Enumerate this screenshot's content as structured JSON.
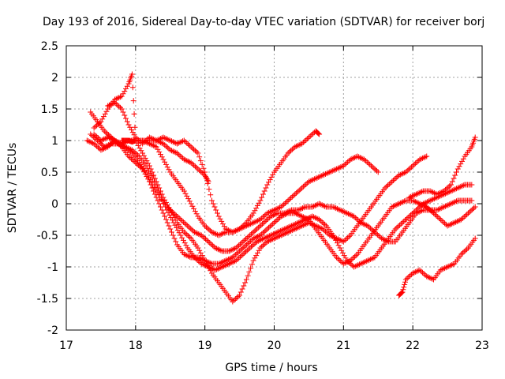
{
  "chart_data": {
    "type": "scatter",
    "title": "Day 193 of 2016, Sidereal Day-to-day VTEC variation (SDTVAR) for receiver borj",
    "xlabel": "GPS time / hours",
    "ylabel": "SDTVAR / TECUs",
    "xlim": [
      17,
      23
    ],
    "ylim": [
      -2,
      2.5
    ],
    "xticks": [
      "17",
      "18",
      "19",
      "20",
      "21",
      "22",
      "23"
    ],
    "yticks": [
      "-2",
      "-1.5",
      "-1",
      "-0.5",
      "0",
      "0.5",
      "1",
      "1.5",
      "2",
      "2.5"
    ],
    "grid": true,
    "marker": "+",
    "color": "#ff0000",
    "series": [
      {
        "x": [
          17.8,
          17.85,
          17.9,
          17.95,
          18.0,
          18.1,
          18.2,
          18.3,
          18.4,
          18.5,
          18.6,
          18.7,
          18.8,
          18.9,
          19.0,
          19.1,
          19.2,
          19.3,
          19.4,
          19.5,
          19.6,
          19.7,
          19.8,
          19.9,
          20.0,
          20.1,
          20.2,
          20.3,
          20.4,
          20.5,
          20.6,
          20.65
        ],
        "y": [
          1.0,
          1.0,
          1.0,
          0.98,
          1.0,
          1.0,
          1.0,
          1.0,
          1.05,
          1.0,
          0.95,
          1.0,
          0.9,
          0.8,
          0.5,
          0.05,
          -0.2,
          -0.4,
          -0.45,
          -0.4,
          -0.3,
          -0.15,
          0.05,
          0.3,
          0.5,
          0.65,
          0.8,
          0.9,
          0.95,
          1.05,
          1.15,
          1.1
        ]
      },
      {
        "x": [
          17.4,
          17.5,
          17.6,
          17.7,
          17.8,
          17.9,
          18.0,
          18.1,
          18.2,
          18.3,
          18.4,
          18.5,
          18.6,
          18.7,
          18.8,
          18.9,
          19.0,
          19.1,
          19.2,
          19.3,
          19.4,
          19.5,
          19.6,
          19.7,
          19.8,
          19.9,
          20.0,
          20.1,
          20.2,
          20.3,
          20.4,
          20.5,
          20.6,
          20.7,
          20.8,
          20.9,
          21.0,
          21.1,
          21.2,
          21.3,
          21.4,
          21.5
        ],
        "y": [
          1.1,
          1.0,
          1.05,
          1.0,
          0.95,
          1.0,
          1.0,
          1.0,
          0.95,
          0.9,
          0.7,
          0.5,
          0.35,
          0.2,
          0.0,
          -0.2,
          -0.35,
          -0.45,
          -0.5,
          -0.45,
          -0.45,
          -0.4,
          -0.35,
          -0.3,
          -0.25,
          -0.15,
          -0.1,
          -0.05,
          0.05,
          0.15,
          0.25,
          0.35,
          0.4,
          0.45,
          0.5,
          0.55,
          0.6,
          0.7,
          0.75,
          0.7,
          0.6,
          0.5
        ]
      },
      {
        "x": [
          17.35,
          17.45,
          17.55,
          17.65,
          17.75,
          17.85,
          17.95,
          18.05,
          18.15,
          18.25,
          18.35,
          18.45,
          18.55,
          18.65,
          18.75,
          18.85,
          18.95,
          19.05,
          19.15,
          19.25,
          19.35,
          19.45,
          19.55,
          19.65,
          19.75,
          19.85,
          19.95,
          20.05,
          20.15,
          20.25,
          20.35,
          20.45,
          20.55,
          20.65,
          20.75,
          20.85,
          20.95,
          21.05,
          21.15,
          21.25,
          21.35,
          21.45,
          21.55,
          21.65,
          21.75,
          21.85,
          21.95,
          22.05,
          22.15,
          22.25,
          22.35,
          22.45,
          22.55,
          22.65,
          22.75,
          22.85
        ],
        "y": [
          1.45,
          1.3,
          1.15,
          1.05,
          0.95,
          0.9,
          0.8,
          0.65,
          0.5,
          0.3,
          0.1,
          -0.05,
          -0.15,
          -0.25,
          -0.35,
          -0.45,
          -0.5,
          -0.6,
          -0.7,
          -0.75,
          -0.75,
          -0.7,
          -0.6,
          -0.5,
          -0.4,
          -0.3,
          -0.2,
          -0.15,
          -0.15,
          -0.1,
          -0.1,
          -0.05,
          -0.05,
          0.0,
          -0.05,
          -0.05,
          -0.1,
          -0.15,
          -0.2,
          -0.3,
          -0.35,
          -0.45,
          -0.55,
          -0.6,
          -0.6,
          -0.45,
          -0.3,
          -0.15,
          -0.1,
          -0.1,
          -0.1,
          -0.05,
          0.0,
          0.05,
          0.05,
          0.05
        ]
      },
      {
        "x": [
          17.3,
          17.4,
          17.5,
          17.6,
          17.7,
          17.8,
          17.9,
          18.0,
          18.1,
          18.2,
          18.3,
          18.4,
          18.5,
          18.6,
          18.7,
          18.8,
          18.9,
          19.0,
          19.1,
          19.2,
          19.3,
          19.4,
          19.5,
          19.6,
          19.7,
          19.8,
          19.9,
          20.0,
          20.1,
          20.2,
          20.3,
          20.4,
          20.5,
          20.6,
          20.7,
          20.8,
          20.9,
          21.0,
          21.1,
          21.2,
          21.3,
          21.4,
          21.5,
          21.6,
          21.7,
          21.8,
          21.9,
          22.0,
          22.1,
          22.2,
          22.3,
          22.4,
          22.5,
          22.6,
          22.7,
          22.8,
          22.9
        ],
        "y": [
          1.0,
          0.95,
          0.85,
          0.9,
          1.0,
          0.9,
          0.75,
          0.65,
          0.55,
          0.35,
          0.1,
          -0.15,
          -0.4,
          -0.65,
          -0.8,
          -0.85,
          -0.85,
          -0.9,
          -0.95,
          -0.95,
          -0.9,
          -0.85,
          -0.75,
          -0.65,
          -0.55,
          -0.5,
          -0.4,
          -0.3,
          -0.2,
          -0.15,
          -0.15,
          -0.2,
          -0.25,
          -0.4,
          -0.55,
          -0.7,
          -0.85,
          -0.95,
          -0.9,
          -0.8,
          -0.65,
          -0.5,
          -0.35,
          -0.2,
          -0.05,
          0.0,
          0.05,
          0.05,
          0.0,
          -0.05,
          -0.15,
          -0.25,
          -0.35,
          -0.3,
          -0.25,
          -0.15,
          -0.05
        ]
      },
      {
        "x": [
          17.35,
          17.45,
          17.55,
          17.65,
          17.75,
          17.85,
          17.95,
          18.05,
          18.15,
          18.25,
          18.35,
          18.45,
          18.55,
          18.65,
          18.75,
          18.85,
          18.95,
          19.05,
          19.15,
          19.25,
          19.35,
          19.45,
          19.55,
          19.65,
          19.75,
          19.85,
          19.95,
          20.05,
          20.15,
          20.25,
          20.35,
          20.45,
          20.55,
          20.65,
          20.75,
          20.85,
          20.95,
          21.05,
          21.15,
          21.25,
          21.35,
          21.45,
          21.55,
          21.65,
          21.75,
          21.85,
          21.95,
          22.05,
          22.15,
          22.25,
          22.35,
          22.45,
          22.55,
          22.65,
          22.75,
          22.85
        ],
        "y": [
          1.1,
          1.0,
          0.9,
          0.95,
          0.95,
          0.9,
          0.85,
          0.75,
          0.6,
          0.4,
          0.15,
          -0.1,
          -0.3,
          -0.5,
          -0.7,
          -0.85,
          -0.95,
          -1.0,
          -1.05,
          -1.0,
          -0.95,
          -0.9,
          -0.8,
          -0.7,
          -0.6,
          -0.55,
          -0.5,
          -0.45,
          -0.4,
          -0.35,
          -0.3,
          -0.25,
          -0.2,
          -0.25,
          -0.35,
          -0.5,
          -0.7,
          -0.9,
          -1.0,
          -0.95,
          -0.9,
          -0.85,
          -0.7,
          -0.55,
          -0.4,
          -0.3,
          -0.2,
          -0.1,
          0.0,
          0.05,
          0.1,
          0.15,
          0.2,
          0.25,
          0.3,
          0.3
        ]
      },
      {
        "x": [
          17.4,
          17.5,
          17.6,
          17.7,
          17.8,
          17.9,
          17.95,
          18.0,
          18.1,
          18.2,
          18.3,
          18.4,
          18.5,
          18.6,
          18.7,
          18.8,
          18.9,
          19.0,
          19.1,
          19.2,
          19.3,
          19.4,
          19.5,
          19.6,
          19.7,
          19.8,
          19.9,
          20.0,
          20.1,
          20.2,
          20.3,
          20.4,
          20.5,
          20.6,
          20.7,
          20.8,
          20.9,
          21.0,
          21.1,
          21.2,
          21.3,
          21.4,
          21.5,
          21.6,
          21.7,
          21.8,
          21.9,
          22.0,
          22.1,
          22.2
        ],
        "y": [
          1.2,
          1.3,
          1.5,
          1.65,
          1.7,
          1.9,
          2.05,
          1.0,
          0.8,
          0.6,
          0.35,
          0.1,
          -0.1,
          -0.3,
          -0.45,
          -0.55,
          -0.7,
          -0.9,
          -1.1,
          -1.25,
          -1.4,
          -1.55,
          -1.45,
          -1.2,
          -0.9,
          -0.7,
          -0.6,
          -0.55,
          -0.5,
          -0.45,
          -0.4,
          -0.35,
          -0.3,
          -0.35,
          -0.4,
          -0.5,
          -0.55,
          -0.6,
          -0.5,
          -0.35,
          -0.2,
          -0.05,
          0.1,
          0.25,
          0.35,
          0.45,
          0.5,
          0.6,
          0.7,
          0.75
        ]
      },
      {
        "x": [
          17.6,
          17.7,
          17.8,
          17.9,
          18.0,
          18.1,
          18.2,
          18.3,
          18.4,
          18.5,
          18.6,
          18.7,
          18.8,
          18.9,
          19.0,
          19.05
        ],
        "y": [
          1.55,
          1.6,
          1.5,
          1.25,
          1.05,
          0.95,
          1.05,
          1.0,
          0.95,
          0.85,
          0.8,
          0.7,
          0.65,
          0.55,
          0.45,
          0.35
        ]
      },
      {
        "x": [
          21.8,
          21.85,
          21.9,
          22.0,
          22.1,
          22.2,
          22.3,
          22.4,
          22.5,
          22.6,
          22.7,
          22.8,
          22.9
        ],
        "y": [
          -1.45,
          -1.4,
          -1.2,
          -1.1,
          -1.05,
          -1.15,
          -1.2,
          -1.05,
          -1.0,
          -0.95,
          -0.8,
          -0.7,
          -0.55
        ]
      },
      {
        "x": [
          21.95,
          22.05,
          22.15,
          22.25,
          22.35,
          22.45,
          22.55,
          22.65,
          22.75,
          22.85,
          22.9
        ],
        "y": [
          0.1,
          0.15,
          0.2,
          0.2,
          0.15,
          0.2,
          0.3,
          0.55,
          0.75,
          0.9,
          1.05
        ]
      }
    ]
  }
}
